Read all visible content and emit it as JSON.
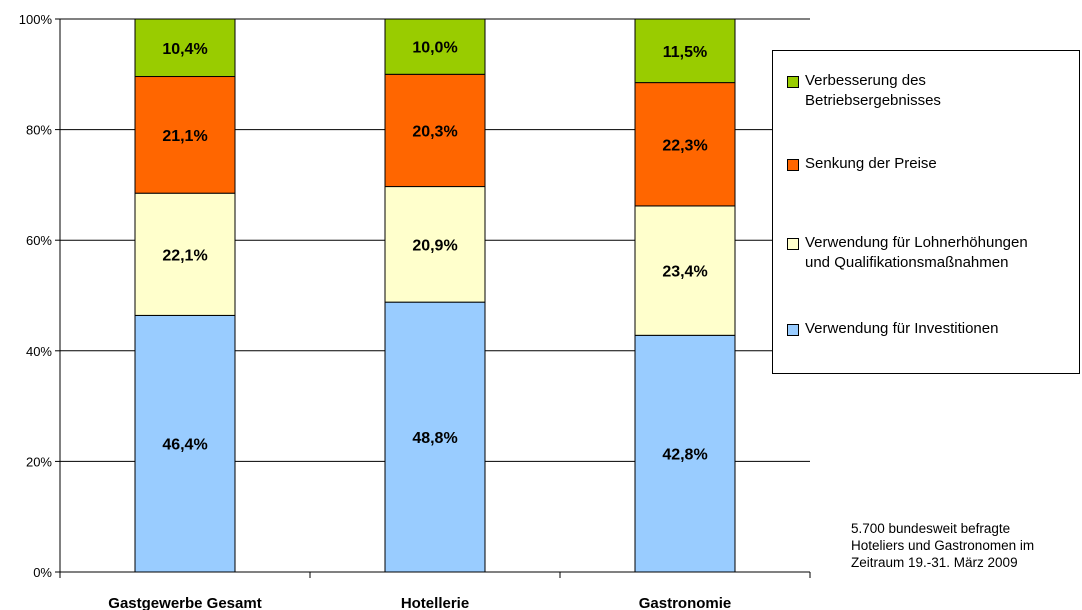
{
  "chart_data": {
    "type": "bar",
    "stacked": true,
    "categories": [
      "Gastgewerbe Gesamt",
      "Hotellerie",
      "Gastronomie"
    ],
    "series": [
      {
        "name": "Verwendung für Investitionen",
        "color": "#99CCFF",
        "values": [
          46.4,
          48.8,
          42.8
        ],
        "labels": [
          "46,4%",
          "48,8%",
          "42,8%"
        ]
      },
      {
        "name": "Verwendung für Lohnerhöhungen\nund Qualifikationsmaßnahmen",
        "color": "#FFFFCC",
        "values": [
          22.1,
          20.9,
          23.4
        ],
        "labels": [
          "22,1%",
          "20,9%",
          "23,4%"
        ]
      },
      {
        "name": "Senkung der Preise",
        "color": "#FF6600",
        "values": [
          21.1,
          20.3,
          22.3
        ],
        "labels": [
          "21,1%",
          "20,3%",
          "22,3%"
        ]
      },
      {
        "name": "Verbesserung des\nBetriebsergebnisses",
        "color": "#99CC00",
        "values": [
          10.4,
          10.0,
          11.5
        ],
        "labels": [
          "10,4%",
          "10,0%",
          "11,5%"
        ]
      }
    ],
    "yticks": [
      0,
      20,
      40,
      60,
      80,
      100
    ],
    "ytick_labels": [
      "0%",
      "20%",
      "40%",
      "60%",
      "80%",
      "100%"
    ],
    "ylim": [
      0,
      100
    ],
    "grid": true,
    "legend_position": "right",
    "legend_order": [
      3,
      2,
      1,
      0
    ]
  },
  "note_lines": [
    "5.700 bundesweit befragte",
    "Hoteliers und Gastronomen im",
    "Zeitraum 19.-31. März 2009"
  ]
}
